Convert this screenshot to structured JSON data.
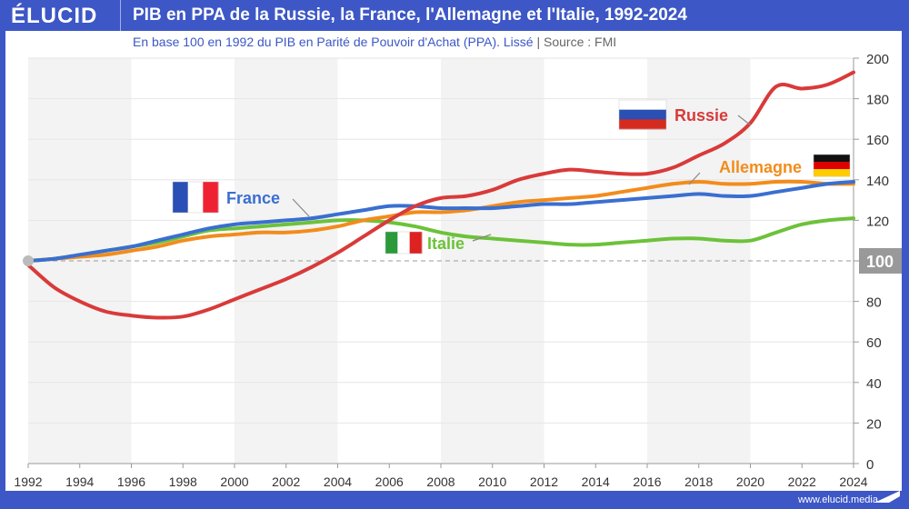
{
  "header": {
    "logo": "ÉLUCID",
    "title": "PIB en PPA de la Russie, la France, l'Allemagne et l'Italie, 1992-2024"
  },
  "subtitle": {
    "text": "En base 100 en 1992 du PIB en Parité de Pouvoir d'Achat (PPA). Lissé",
    "sep": "|",
    "source": "Source : FMI"
  },
  "footer": {
    "url": "www.elucid.media"
  },
  "chart_data": {
    "type": "line",
    "title": "PIB en PPA de la Russie, la France, l'Allemagne et l'Italie, 1992-2024",
    "x": [
      1992,
      1993,
      1994,
      1995,
      1996,
      1997,
      1998,
      1999,
      2000,
      2001,
      2002,
      2003,
      2004,
      2005,
      2006,
      2007,
      2008,
      2009,
      2010,
      2011,
      2012,
      2013,
      2014,
      2015,
      2016,
      2017,
      2018,
      2019,
      2020,
      2021,
      2022,
      2023,
      2024
    ],
    "xticks": [
      1992,
      1994,
      1996,
      1998,
      2000,
      2002,
      2004,
      2006,
      2008,
      2010,
      2012,
      2014,
      2016,
      2018,
      2020,
      2022,
      2024
    ],
    "yticks": [
      0,
      20,
      40,
      60,
      80,
      100,
      120,
      140,
      160,
      180,
      200
    ],
    "xlim": [
      1992,
      2024
    ],
    "ylim": [
      0,
      200
    ],
    "reference_line": 100,
    "series": [
      {
        "name": "Russie",
        "color": "#d93a3a",
        "values": [
          98,
          87,
          80,
          75,
          73,
          72,
          72.5,
          76,
          81,
          86,
          91,
          97,
          104,
          112,
          120,
          127,
          131,
          132,
          135,
          140,
          143,
          145,
          144,
          143,
          143,
          146,
          152,
          158,
          168,
          186,
          185,
          187,
          193
        ]
      },
      {
        "name": "France",
        "color": "#3a6fd0",
        "values": [
          100,
          101,
          103,
          105,
          107,
          110,
          113,
          116,
          118,
          119,
          120,
          121,
          123,
          125,
          127,
          127,
          126,
          126,
          126,
          127,
          128,
          128,
          129,
          130,
          131,
          132,
          133,
          132,
          132,
          134,
          136,
          138,
          139
        ]
      },
      {
        "name": "Allemagne",
        "color": "#f28c1c",
        "values": [
          100,
          101,
          102,
          103,
          105,
          107,
          110,
          112,
          113,
          114,
          114,
          115,
          117,
          120,
          122,
          124,
          124,
          125,
          127,
          129,
          130,
          131,
          132,
          134,
          136,
          138,
          139,
          138,
          138,
          139,
          139,
          138,
          138
        ]
      },
      {
        "name": "Italie",
        "color": "#6cc23a",
        "values": [
          100,
          101,
          103,
          105,
          107,
          109,
          112,
          115,
          116,
          117,
          118,
          119,
          120,
          120,
          119,
          117,
          114,
          112,
          111,
          110,
          109,
          108,
          108,
          109,
          110,
          111,
          111,
          110,
          110,
          114,
          118,
          120,
          121
        ]
      }
    ]
  }
}
